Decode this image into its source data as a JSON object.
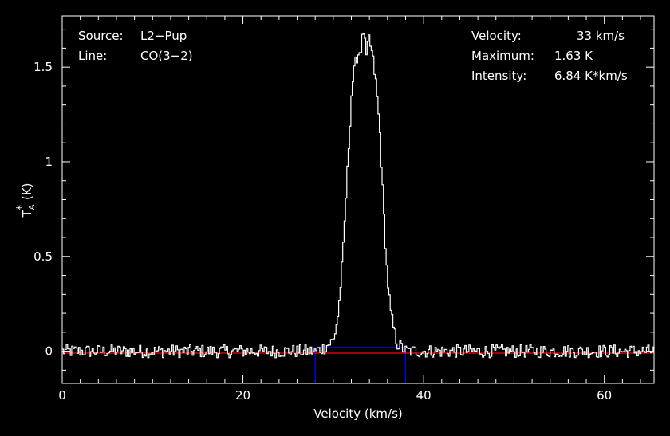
{
  "chart_data": {
    "type": "line",
    "xlabel": "Velocity (km/s)",
    "ylabel_main": "T",
    "ylabel_sub": "A",
    "ylabel_sup": "*",
    "ylabel_unit": "(K)",
    "xlim": [
      0,
      65.5
    ],
    "ylim": [
      -0.17,
      1.77
    ],
    "xticks": [
      0,
      20,
      40,
      60
    ],
    "yticks": [
      0,
      0.5,
      1,
      1.5
    ],
    "xtick_labels": [
      "0",
      "20",
      "40",
      "60"
    ],
    "ytick_labels": [
      "0",
      "0.5",
      "1",
      "1.5"
    ],
    "grid": false,
    "colors": {
      "spectrum": "#ffffff",
      "baseline": "#ff0000",
      "window": "#0000ff",
      "background": "#000000"
    },
    "annotations_left": [
      {
        "label": "Source:",
        "value": "L2−Pup"
      },
      {
        "label": "Line:",
        "value": "CO(3−2)"
      }
    ],
    "annotations_right": [
      {
        "label": "Velocity:",
        "value": "33 km/s"
      },
      {
        "label": "Maximum:",
        "value": "1.63 K"
      },
      {
        "label": "Intensity:",
        "value": "6.84 K*km/s"
      }
    ],
    "baseline": {
      "y": -0.01
    },
    "integration_window": {
      "x_start": 28.0,
      "x_end": 38.0,
      "y_top": 0.02
    },
    "series": [
      {
        "x_start": 0,
        "x_end": 65.5,
        "step": 0.15,
        "noise_amplitude": 0.035,
        "peak_samples": [
          [
            28.0,
            0.0
          ],
          [
            29.0,
            0.02
          ],
          [
            30.0,
            0.06
          ],
          [
            30.5,
            0.2
          ],
          [
            31.0,
            0.5
          ],
          [
            31.5,
            0.95
          ],
          [
            32.0,
            1.4
          ],
          [
            32.5,
            1.55
          ],
          [
            33.0,
            1.6
          ],
          [
            33.3,
            1.69
          ],
          [
            33.6,
            1.55
          ],
          [
            33.9,
            1.65
          ],
          [
            34.3,
            1.55
          ],
          [
            34.7,
            1.4
          ],
          [
            35.1,
            1.15
          ],
          [
            35.5,
            0.75
          ],
          [
            35.9,
            0.4
          ],
          [
            36.3,
            0.2
          ],
          [
            36.7,
            0.1
          ],
          [
            37.0,
            0.04
          ],
          [
            38.0,
            0.0
          ]
        ]
      }
    ]
  }
}
